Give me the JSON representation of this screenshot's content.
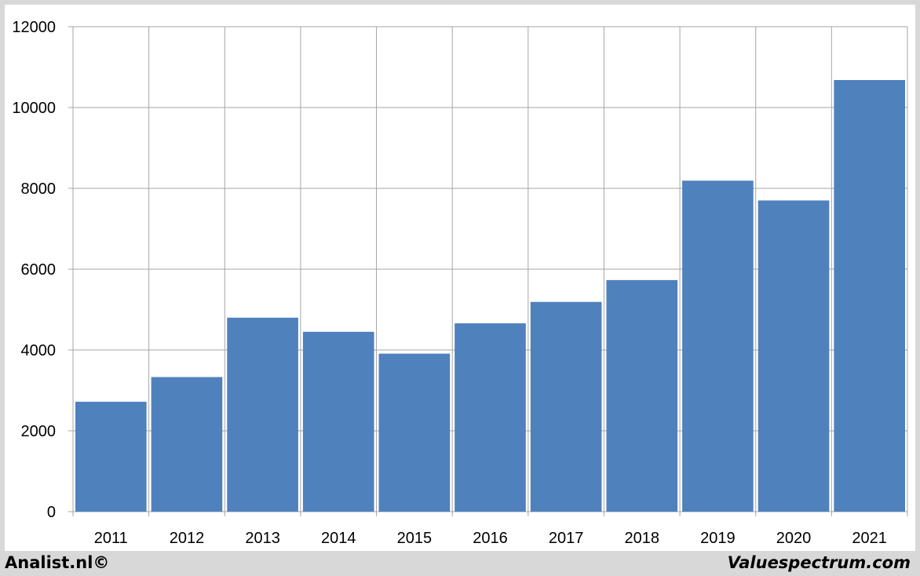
{
  "chart_data": {
    "type": "bar",
    "title": "",
    "xlabel": "",
    "ylabel": "",
    "categories": [
      "2011",
      "2012",
      "2013",
      "2014",
      "2015",
      "2016",
      "2017",
      "2018",
      "2019",
      "2020",
      "2021"
    ],
    "values": [
      2720,
      3330,
      4800,
      4450,
      3910,
      4660,
      5190,
      5730,
      8190,
      7700,
      10680
    ],
    "ylim": [
      0,
      12000
    ],
    "yticks": [
      "0",
      "2000",
      "4000",
      "6000",
      "8000",
      "10000",
      "12000"
    ],
    "grid": true,
    "bar_color": "#4f81bd"
  },
  "footer": {
    "left": "Analist.nl©",
    "right": "Valuespectrum.com"
  }
}
